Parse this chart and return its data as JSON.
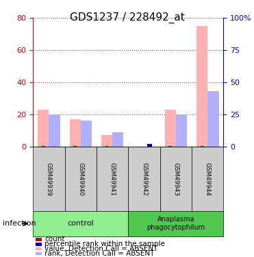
{
  "title": "GDS1237 / 228492_at",
  "samples": [
    "GSM49939",
    "GSM49940",
    "GSM49941",
    "GSM49942",
    "GSM49943",
    "GSM49944"
  ],
  "n_samples": 6,
  "control_count": 3,
  "anaplasma_count": 3,
  "value_absent": [
    23.0,
    17.0,
    7.0,
    0.0,
    23.0,
    75.0
  ],
  "rank_absent": [
    25.0,
    20.0,
    11.0,
    0.0,
    25.0,
    43.0
  ],
  "count_red": [
    0.5,
    0.5,
    0.5,
    0.0,
    0.5,
    0.5
  ],
  "percentile_blue": [
    0.0,
    0.0,
    0.0,
    2.0,
    0.0,
    0.0
  ],
  "ylim_left": [
    0,
    80
  ],
  "ylim_right": [
    0,
    100
  ],
  "yticks_left": [
    0,
    20,
    40,
    60,
    80
  ],
  "yticks_right": [
    0,
    25,
    50,
    75,
    100
  ],
  "yticklabels_right": [
    "0",
    "25",
    "50",
    "75",
    "100%"
  ],
  "left_axis_color": "#cc0000",
  "right_axis_color": "#0000cc",
  "bar_width": 0.35,
  "pink_color": "#ffb0b0",
  "light_blue_color": "#b0b0ff",
  "red_color": "#cc0000",
  "blue_color": "#000099",
  "control_color": "#90ee90",
  "anaplasma_color": "#50c850",
  "label_area_color": "#cccccc",
  "control_label": "control",
  "anaplasma_label": "Anaplasma\nphagocytophilum",
  "infection_label": "infection",
  "legend_items": [
    {
      "label": "count",
      "color": "#cc0000"
    },
    {
      "label": "percentile rank within the sample",
      "color": "#000099"
    },
    {
      "label": "value, Detection Call = ABSENT",
      "color": "#ffb0b0"
    },
    {
      "label": "rank, Detection Call = ABSENT",
      "color": "#b0b0ff"
    }
  ],
  "dotted_grid_color": "#555555",
  "font_size_title": 11,
  "font_size_ticks": 8,
  "font_size_labels": 8,
  "font_size_legend": 7.5
}
